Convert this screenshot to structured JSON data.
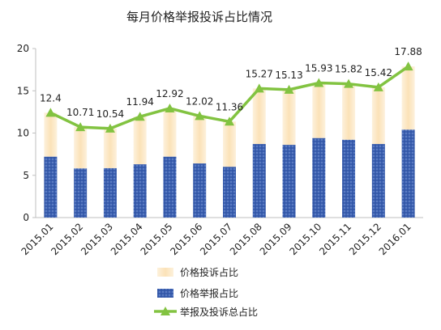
{
  "chart_data": {
    "type": "bar",
    "title": "每月价格举报投诉占比情况",
    "categories": [
      "2015.01",
      "2015.02",
      "2015.03",
      "2015.04",
      "2015.05",
      "2015.06",
      "2015.07",
      "2015.08",
      "2015.09",
      "2015.10",
      "2015.11",
      "2015.12",
      "2016.01"
    ],
    "ylim": [
      0,
      20
    ],
    "yticks": [
      0,
      5,
      10,
      15,
      20
    ],
    "grid": false,
    "legend_position": "bottom",
    "series": [
      {
        "name": "价格投诉占比",
        "kind": "stacked-bar",
        "color": "#fbe5bf",
        "values": [
          5.2,
          4.9,
          4.7,
          5.64,
          5.72,
          5.62,
          5.36,
          6.57,
          6.53,
          6.53,
          6.62,
          6.72,
          7.48
        ]
      },
      {
        "name": "价格举报占比",
        "kind": "stacked-bar",
        "color": "#3a5fb0",
        "values": [
          7.2,
          5.81,
          5.84,
          6.3,
          7.2,
          6.4,
          6.0,
          8.7,
          8.6,
          9.4,
          9.2,
          8.7,
          10.4
        ]
      },
      {
        "name": "举报及投诉总占比",
        "kind": "line",
        "color": "#82c341",
        "values": [
          12.4,
          10.71,
          10.54,
          11.94,
          12.92,
          12.02,
          11.36,
          15.27,
          15.13,
          15.93,
          15.82,
          15.42,
          17.88
        ],
        "labels": [
          "12.4",
          "10.71",
          "10.54",
          "11.94",
          "12.92",
          "12.02",
          "11.36",
          "15.27",
          "15.13",
          "15.93",
          "15.82",
          "15.42",
          "17.88"
        ]
      }
    ]
  }
}
